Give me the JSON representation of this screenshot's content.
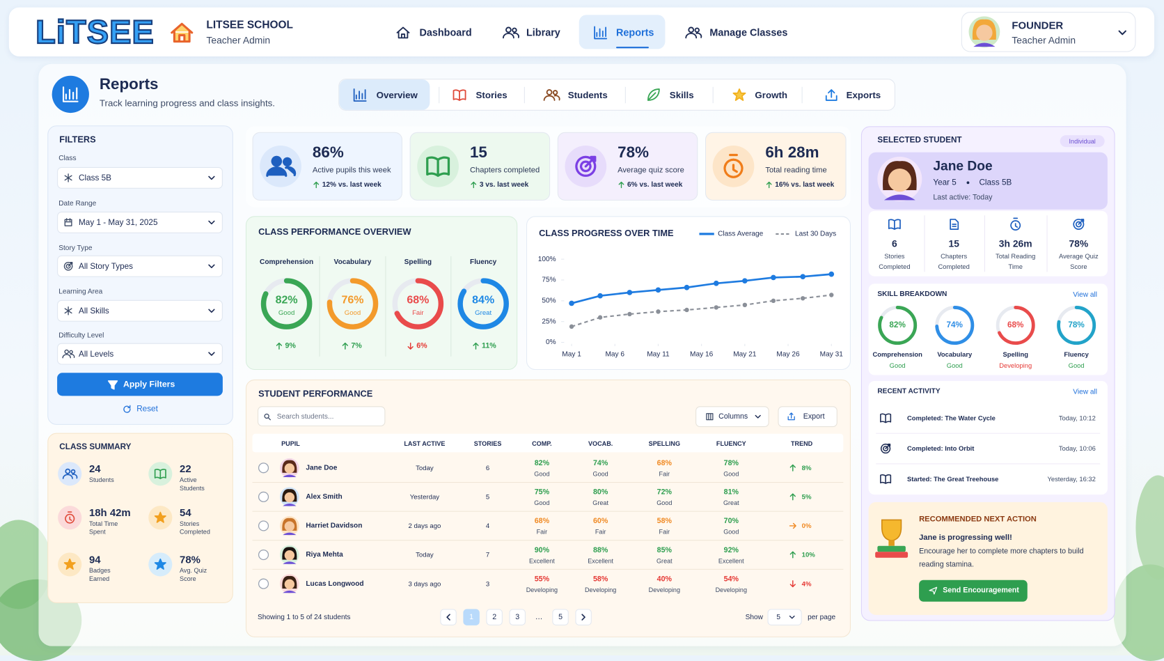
{
  "header": {
    "brand": "LiTSEE",
    "school": "LITSEE SCHOOL",
    "school_role": "Teacher Admin",
    "nav": [
      "Dashboard",
      "Library",
      "Reports",
      "Manage Classes"
    ],
    "user": {
      "name": "FOUNDER",
      "role": "Teacher Admin"
    }
  },
  "reports": {
    "title": "Reports",
    "subtitle": "Track learning progress and class insights.",
    "tabs": [
      "Overview",
      "Stories",
      "Students",
      "Skills",
      "Growth",
      "Exports"
    ]
  },
  "filters": {
    "title": "FILTERS",
    "fields": [
      {
        "label": "Class",
        "value": "Class 5B"
      },
      {
        "label": "Date Range",
        "value": "May 1 - May 31, 2025"
      },
      {
        "label": "Story Type",
        "value": "All Story Types"
      },
      {
        "label": "Learning Area",
        "value": "All Skills"
      },
      {
        "label": "Difficulty Level",
        "value": "All Levels"
      }
    ],
    "apply": "Apply Filters",
    "reset": "Reset"
  },
  "class_summary": {
    "title": "CLASS SUMMARY",
    "items": [
      {
        "value": "24",
        "label": "Students"
      },
      {
        "value": "22",
        "label": "Active Students"
      },
      {
        "value": "18h 42m",
        "label": "Total Time Spent"
      },
      {
        "value": "54",
        "label": "Stories Completed"
      },
      {
        "value": "94",
        "label": "Badges Earned"
      },
      {
        "value": "78%",
        "label": "Avg. Quiz Score"
      }
    ]
  },
  "kpis": [
    {
      "value": "86%",
      "label": "Active pupils this week",
      "change": "12% vs. last week"
    },
    {
      "value": "15",
      "label": "Chapters completed",
      "change": "3 vs. last week"
    },
    {
      "value": "78%",
      "label": "Average quiz score",
      "change": "6% vs. last week"
    },
    {
      "value": "6h 28m",
      "label": "Total reading time",
      "change": "16% vs. last week"
    }
  ],
  "class_performance": {
    "type": "donut",
    "title": "CLASS PERFORMANCE OVERVIEW",
    "categories": [
      "Comprehension",
      "Vocabulary",
      "Spelling",
      "Fluency"
    ],
    "values": [
      82,
      76,
      68,
      84
    ],
    "value_labels": [
      "82%",
      "76%",
      "68%",
      "84%"
    ],
    "ratings": [
      "Good",
      "Good",
      "Fair",
      "Great"
    ],
    "changes": [
      "9%",
      "7%",
      "6%",
      "11%"
    ],
    "trend": [
      "up",
      "up",
      "down",
      "up"
    ],
    "colors": [
      "#3aa655",
      "#f39a2b",
      "#e94b4b",
      "#1e88e5"
    ]
  },
  "progress": {
    "type": "line",
    "title": "CLASS PROGRESS OVER TIME",
    "x": [
      1,
      4.3,
      7.7,
      11,
      14.3,
      17.7,
      21,
      24.3,
      27.7,
      31
    ],
    "xlim": [
      1,
      31
    ],
    "xticks": [
      {
        "value": 1,
        "label": "May 1"
      },
      {
        "value": 6,
        "label": "May 6"
      },
      {
        "value": 11,
        "label": "May 11"
      },
      {
        "value": 16,
        "label": "May 16"
      },
      {
        "value": 21,
        "label": "May 21"
      },
      {
        "value": 26,
        "label": "May 26"
      },
      {
        "value": 31,
        "label": "May 31"
      }
    ],
    "ylim": [
      0,
      100
    ],
    "yticks": [
      {
        "value": 0,
        "label": "0%"
      },
      {
        "value": 25,
        "label": "25%"
      },
      {
        "value": 50,
        "label": "50%"
      },
      {
        "value": 75,
        "label": "75%"
      },
      {
        "value": 100,
        "label": "100%"
      }
    ],
    "series": [
      {
        "name": "Class Average",
        "color": "#1e7be0",
        "values": [
          47,
          56,
          60,
          63,
          66,
          71,
          74,
          78,
          79,
          82
        ]
      },
      {
        "name": "Last 30 Days",
        "color": "#8a8f98",
        "values": [
          19,
          30,
          34,
          37,
          39,
          42,
          45,
          50,
          53,
          57
        ]
      }
    ]
  },
  "student_performance": {
    "title": "STUDENT PERFORMANCE",
    "search_placeholder": "Search students...",
    "columns_button": "Columns",
    "export_button": "Export",
    "headers": [
      "PUPIL",
      "LAST ACTIVE",
      "STORIES",
      "COMP.",
      "VOCAB.",
      "SPELLING",
      "FLUENCY",
      "TREND"
    ],
    "rows": [
      {
        "pupil": "Jane Doe",
        "last_active": "Today",
        "stories": 6,
        "scores": [
          {
            "value": "82%",
            "rating": "Good"
          },
          {
            "value": "74%",
            "rating": "Good"
          },
          {
            "value": "68%",
            "rating": "Fair"
          },
          {
            "value": "78%",
            "rating": "Good"
          }
        ],
        "trend": "8%",
        "trend_dir": "up"
      },
      {
        "pupil": "Alex Smith",
        "last_active": "Yesterday",
        "stories": 5,
        "scores": [
          {
            "value": "75%",
            "rating": "Good"
          },
          {
            "value": "80%",
            "rating": "Great"
          },
          {
            "value": "72%",
            "rating": "Good"
          },
          {
            "value": "81%",
            "rating": "Great"
          }
        ],
        "trend": "5%",
        "trend_dir": "up"
      },
      {
        "pupil": "Harriet Davidson",
        "last_active": "2 days ago",
        "stories": 4,
        "scores": [
          {
            "value": "68%",
            "rating": "Fair"
          },
          {
            "value": "60%",
            "rating": "Fair"
          },
          {
            "value": "58%",
            "rating": "Fair"
          },
          {
            "value": "70%",
            "rating": "Good"
          }
        ],
        "trend": "0%",
        "trend_dir": "flat"
      },
      {
        "pupil": "Riya Mehta",
        "last_active": "Today",
        "stories": 7,
        "scores": [
          {
            "value": "90%",
            "rating": "Excellent"
          },
          {
            "value": "88%",
            "rating": "Excellent"
          },
          {
            "value": "85%",
            "rating": "Great"
          },
          {
            "value": "92%",
            "rating": "Excellent"
          }
        ],
        "trend": "10%",
        "trend_dir": "up"
      },
      {
        "pupil": "Lucas Longwood",
        "last_active": "3 days ago",
        "stories": 3,
        "scores": [
          {
            "value": "55%",
            "rating": "Developing"
          },
          {
            "value": "58%",
            "rating": "Developing"
          },
          {
            "value": "40%",
            "rating": "Developing"
          },
          {
            "value": "54%",
            "rating": "Developing"
          }
        ],
        "trend": "4%",
        "trend_dir": "down"
      }
    ],
    "showing": "Showing 1 to 5 of 24 students",
    "pages": [
      "1",
      "2",
      "3",
      "…",
      "5"
    ],
    "show": "Show",
    "per_page_value": "5",
    "per_page": "per page"
  },
  "selected_student": {
    "title": "SELECTED STUDENT",
    "badge": "Individual",
    "name": "Jane Doe",
    "year": "Year 5",
    "class": "Class 5B",
    "last_active": "Last active: Today",
    "stats": [
      {
        "value": "6",
        "label": "Stories Completed"
      },
      {
        "value": "15",
        "label": "Chapters Completed"
      },
      {
        "value": "3h 26m",
        "label": "Total Reading Time"
      },
      {
        "value": "78%",
        "label": "Average Quiz Score"
      }
    ],
    "skill_breakdown": {
      "type": "donut",
      "title": "SKILL BREAKDOWN",
      "view_all": "View all",
      "categories": [
        "Comprehension",
        "Vocabulary",
        "Spelling",
        "Fluency"
      ],
      "values": [
        82,
        74,
        68,
        78
      ],
      "value_labels": [
        "82%",
        "74%",
        "68%",
        "78%"
      ],
      "ratings": [
        "Good",
        "Good",
        "Developing",
        "Good"
      ],
      "colors": [
        "#3aa655",
        "#2f8ee6",
        "#e94b4b",
        "#22a3c9"
      ]
    },
    "recent_activity": {
      "title": "RECENT ACTIVITY",
      "view_all": "View all",
      "items": [
        {
          "text": "Completed: The Water Cycle",
          "time": "Today, 10:12"
        },
        {
          "text": "Completed: Into Orbit",
          "time": "Today, 10:06"
        },
        {
          "text": "Started: The Great Treehouse",
          "time": "Yesterday, 16:32"
        }
      ]
    }
  },
  "recommended": {
    "title": "RECOMMENDED NEXT ACTION",
    "heading": "Jane is progressing well!",
    "body": "Encourage her to complete more chapters to build reading stamina.",
    "button": "Send Encouragement"
  }
}
